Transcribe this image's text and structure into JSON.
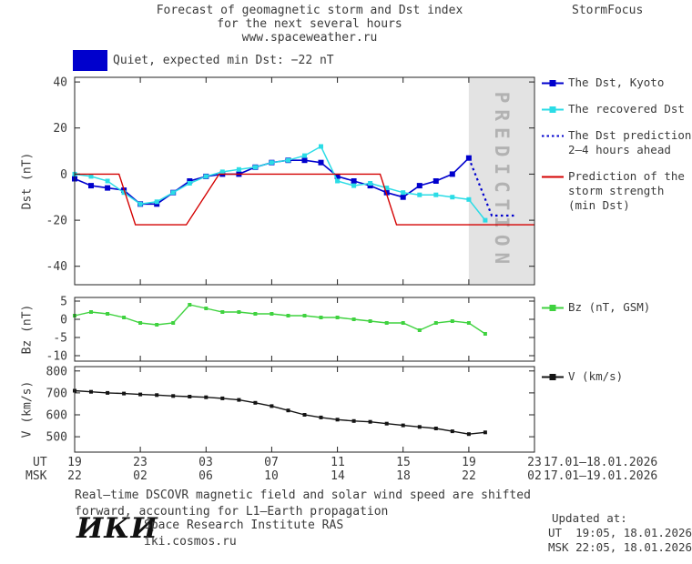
{
  "header": {
    "title_line1": "Forecast of geomagnetic storm and Dst index",
    "title_line2": "for the next several hours",
    "site": "www.spaceweather.ru",
    "brand": "StormFocus"
  },
  "status": {
    "label": "Quiet, expected min Dst: −22 nT",
    "color": "#0000cd"
  },
  "chart_data": [
    {
      "type": "line",
      "panel": "dst",
      "ylabel": "Dst (nT)",
      "ylim": [
        -48,
        42
      ],
      "yticks": [
        40,
        20,
        0,
        -20,
        -40
      ],
      "xlim": [
        0,
        28
      ],
      "xticks": [
        0,
        4,
        8,
        12,
        16,
        20,
        24,
        28
      ],
      "x_description": "hours from 19:00 UT 17.01.2026 to 23:00 UT 18.01.2026",
      "prediction_band": [
        24,
        28
      ],
      "prediction_label": "PREDICTION",
      "series": [
        {
          "name": "The Dst, Kyoto",
          "color": "#0000cd",
          "style": "solid",
          "marker": "square",
          "marker_size": 6,
          "width": 1.6,
          "x": [
            0,
            1,
            2,
            3,
            4,
            5,
            6,
            7,
            8,
            9,
            10,
            11,
            12,
            13,
            14,
            15,
            16,
            17,
            18,
            19,
            20,
            21,
            22,
            23,
            24
          ],
          "y": [
            -2,
            -5,
            -6,
            -7,
            -13,
            -13,
            -8,
            -3,
            -1,
            0,
            0,
            3,
            5,
            6,
            6,
            5,
            -1,
            -3,
            -5,
            -8,
            -10,
            -5,
            -3,
            0,
            7
          ]
        },
        {
          "name": "The recovered Dst",
          "color": "#2bdce6",
          "style": "solid",
          "marker": "square",
          "marker_size": 5,
          "width": 1.5,
          "x": [
            0,
            1,
            2,
            3,
            4,
            5,
            6,
            7,
            8,
            9,
            10,
            11,
            12,
            13,
            14,
            15,
            16,
            17,
            18,
            19,
            20,
            21,
            22,
            23,
            24,
            25
          ],
          "y": [
            0,
            -1,
            -3,
            -8,
            -13,
            -12,
            -8,
            -4,
            -1,
            1,
            2,
            3,
            5,
            6,
            8,
            12,
            -3,
            -5,
            -4,
            -6,
            -8,
            -9,
            -9,
            -10,
            -11,
            -20
          ]
        },
        {
          "name": "The Dst prediction 2–4 hours ahead",
          "color": "#0000cd",
          "style": "dotted",
          "marker": "none",
          "width": 2.2,
          "x": [
            24,
            25.4,
            26.8
          ],
          "y": [
            7,
            -18,
            -18
          ]
        },
        {
          "name": "Prediction of the storm strength (min Dst)",
          "color": "#d40000",
          "style": "solid",
          "marker": "none",
          "width": 1.4,
          "x": [
            0,
            2.7,
            3.7,
            6.8,
            8.8,
            18.6,
            19.6,
            28
          ],
          "y": [
            0,
            0,
            -22,
            -22,
            0,
            0,
            -22,
            -22
          ]
        }
      ]
    },
    {
      "type": "line",
      "panel": "bz",
      "ylabel": "Bz (nT)",
      "ylim": [
        -11.5,
        6
      ],
      "yticks": [
        5,
        0,
        -5,
        -10
      ],
      "xlim": [
        0,
        28
      ],
      "xticks": [
        0,
        4,
        8,
        12,
        16,
        20,
        24,
        28
      ],
      "series": [
        {
          "name": "Bz (nT, GSM)",
          "color": "#3fd23f",
          "style": "solid",
          "marker": "square",
          "marker_size": 4,
          "width": 1.4,
          "x": [
            0,
            1,
            2,
            3,
            4,
            5,
            6,
            7,
            8,
            9,
            10,
            11,
            12,
            13,
            14,
            15,
            16,
            17,
            18,
            19,
            20,
            21,
            22,
            23,
            24,
            25
          ],
          "y": [
            1,
            2,
            1.5,
            0.5,
            -1,
            -1.5,
            -1,
            4,
            3,
            2,
            2,
            1.5,
            1.5,
            1,
            1,
            0.5,
            0.5,
            0,
            -0.5,
            -1,
            -1,
            -3,
            -1,
            -0.5,
            -1,
            -4
          ]
        }
      ]
    },
    {
      "type": "line",
      "panel": "v",
      "ylabel": "V (km/s)",
      "ylim": [
        430,
        820
      ],
      "yticks": [
        800,
        700,
        600,
        500
      ],
      "xlim": [
        0,
        28
      ],
      "xticks": [
        0,
        4,
        8,
        12,
        16,
        20,
        24,
        28
      ],
      "series": [
        {
          "name": "V (km/s)",
          "color": "#141414",
          "style": "solid",
          "marker": "square",
          "marker_size": 4,
          "width": 1.4,
          "x": [
            0,
            1,
            2,
            3,
            4,
            5,
            6,
            7,
            8,
            9,
            10,
            11,
            12,
            13,
            14,
            15,
            16,
            17,
            18,
            19,
            20,
            21,
            22,
            23,
            24,
            25
          ],
          "y": [
            710,
            705,
            700,
            697,
            693,
            690,
            686,
            683,
            680,
            675,
            668,
            655,
            640,
            620,
            600,
            588,
            578,
            572,
            568,
            560,
            552,
            545,
            538,
            525,
            512,
            520
          ]
        }
      ]
    }
  ],
  "legend": {
    "main": [
      {
        "label_lines": [
          "The Dst, Kyoto"
        ],
        "color": "#0000cd",
        "style": "solid",
        "marker": true
      },
      {
        "label_lines": [
          "The recovered Dst"
        ],
        "color": "#2bdce6",
        "style": "solid",
        "marker": true
      },
      {
        "label_lines": [
          "The Dst prediction",
          "2–4 hours ahead"
        ],
        "color": "#0000cd",
        "style": "dotted",
        "marker": false
      },
      {
        "label_lines": [
          "Prediction of the",
          "storm strength",
          "(min Dst)"
        ],
        "color": "#d40000",
        "style": "solid",
        "marker": false
      }
    ],
    "bz": [
      {
        "label_lines": [
          "Bz (nT, GSM)"
        ],
        "color": "#3fd23f",
        "style": "solid",
        "marker": true
      }
    ],
    "v": [
      {
        "label_lines": [
          "V (km/s)"
        ],
        "color": "#141414",
        "style": "solid",
        "marker": true
      }
    ]
  },
  "x_axis": {
    "ut_label": "UT",
    "msk_label": "MSK",
    "ut_ticks": [
      "19",
      "23",
      "03",
      "07",
      "11",
      "15",
      "19",
      "23"
    ],
    "msk_ticks": [
      "22",
      "02",
      "06",
      "10",
      "14",
      "18",
      "22",
      "02"
    ],
    "ut_date_range": "17.01–18.01.2026",
    "msk_date_range": "17.01–19.01.2026"
  },
  "footnote": {
    "line1": "Real–time DSCOVR magnetic field and solar wind speed are shifted",
    "line2": "forward, accounting for L1–Earth propagation"
  },
  "updated": {
    "label": "Updated at:",
    "ut_line": "UT  19:05, 18.01.2026",
    "msk_line": "MSK 22:05, 18.01.2026"
  },
  "institute": {
    "logo_text": "ИКИ",
    "name": "Space Research Institute RAS",
    "url": "iki.cosmos.ru"
  }
}
